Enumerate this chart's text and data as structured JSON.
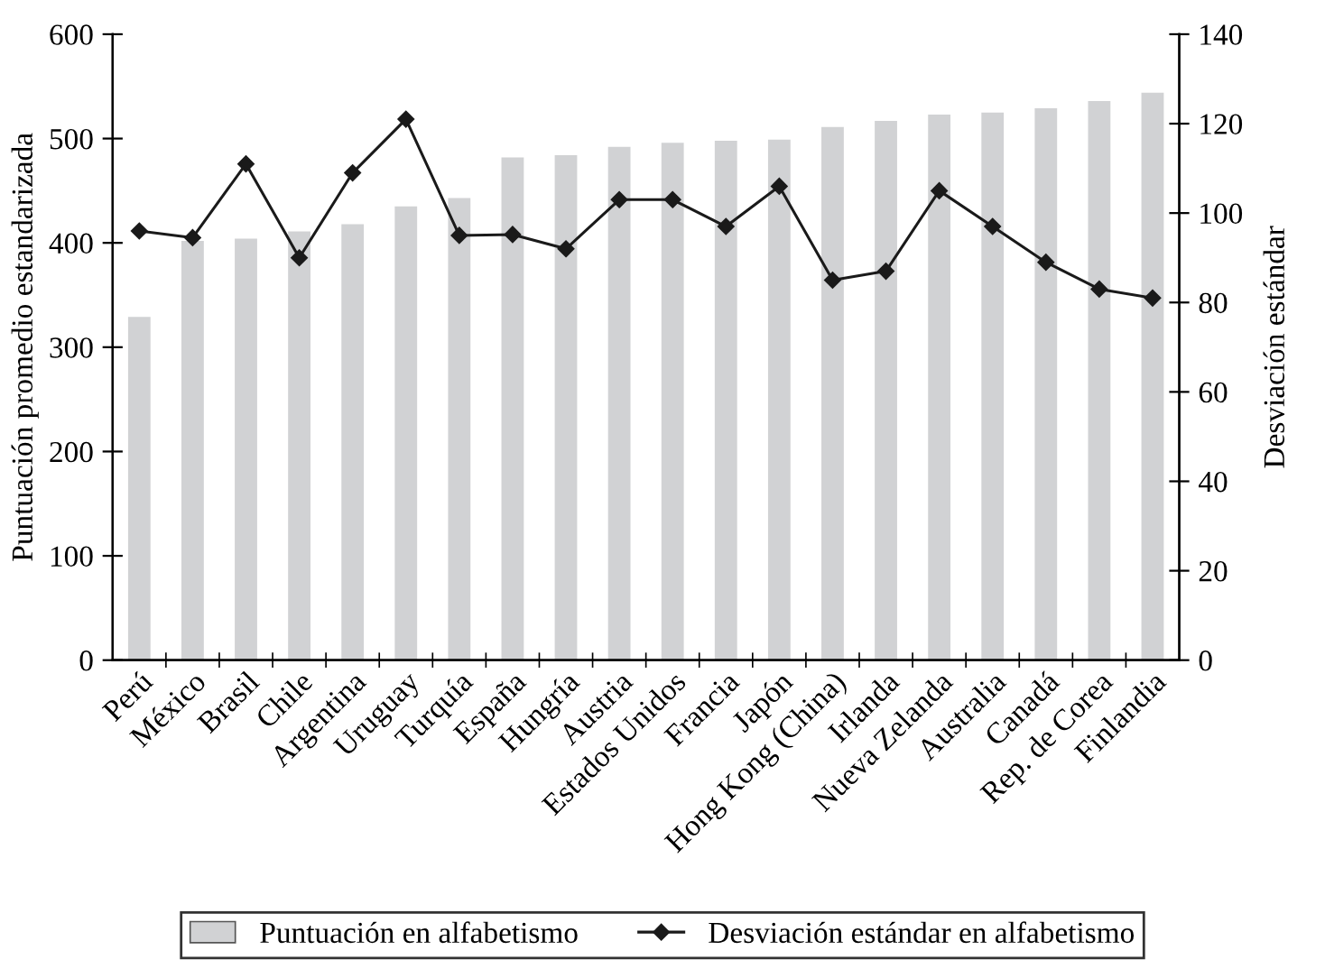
{
  "chart_data": {
    "type": "bar",
    "categories": [
      "Perú",
      "México",
      "Brasil",
      "Chile",
      "Argentina",
      "Uruguay",
      "Turquía",
      "España",
      "Hungría",
      "Austria",
      "Estados Unidos",
      "Francia",
      "Japón",
      "Hong Kong (China)",
      "Irlanda",
      "Nueva Zelanda",
      "Australia",
      "Canadá",
      "Rep. de Corea",
      "Finlandia"
    ],
    "series": [
      {
        "name": "Puntuación en alfabetismo",
        "color": "#d1d2d4",
        "values": [
          329,
          402,
          404,
          411,
          418,
          435,
          443,
          482,
          484,
          492,
          496,
          498,
          499,
          511,
          517,
          523,
          525,
          529,
          536,
          544
        ]
      },
      {
        "name": "Desviación estándar en alfabetismo",
        "color": "#1a1a1a",
        "type": "line",
        "axis": "y2",
        "marker": "diamond",
        "values": [
          96,
          94.5,
          111,
          90,
          109,
          121,
          95,
          95.2,
          92,
          103,
          103,
          97,
          106,
          85,
          87,
          105,
          97,
          89,
          83,
          81
        ]
      }
    ],
    "ylabel": "Puntuación promedio estandarizada",
    "y2label": "Desviación estándar",
    "ylim": [
      0,
      600
    ],
    "yticks": [
      0,
      100,
      200,
      300,
      400,
      500,
      600
    ],
    "y2lim": [
      0,
      140
    ],
    "y2ticks": [
      0,
      20,
      40,
      60,
      80,
      100,
      120,
      140
    ],
    "grid": false,
    "legend": "bottom"
  }
}
